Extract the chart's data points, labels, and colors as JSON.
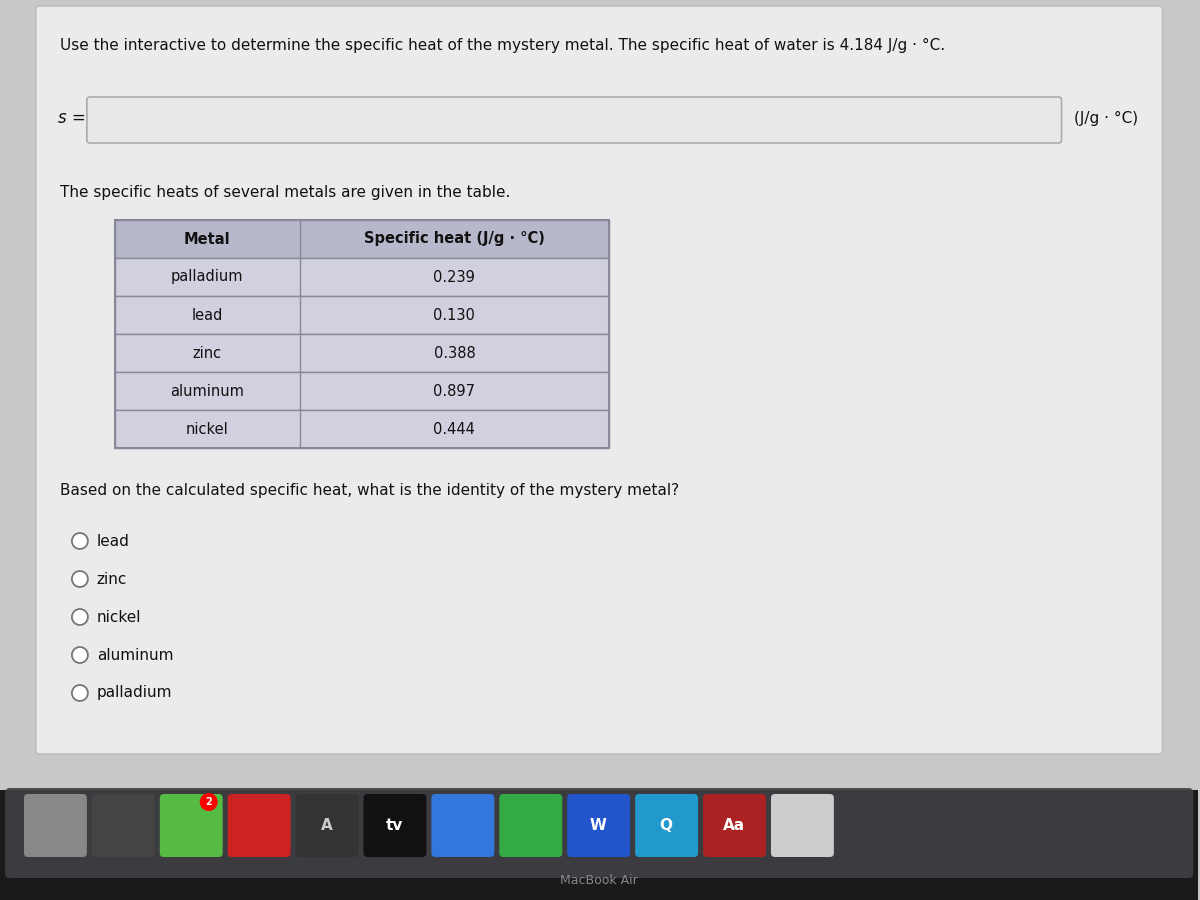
{
  "title": "Use the interactive to determine the specific heat of the mystery metal. The specific heat of water is 4.184 J/g · °C.",
  "s_label": "s =",
  "unit_label": "(J/g · °C)",
  "table_intro": "The specific heats of several metals are given in the table.",
  "table_headers": [
    "Metal",
    "Specific heat (J/g · °C)"
  ],
  "table_data": [
    [
      "palladium",
      "0.239"
    ],
    [
      "lead",
      "0.130"
    ],
    [
      "zinc",
      "0.388"
    ],
    [
      "aluminum",
      "0.897"
    ],
    [
      "nickel",
      "0.444"
    ]
  ],
  "question": "Based on the calculated specific heat, what is the identity of the mystery metal?",
  "options": [
    "lead",
    "zinc",
    "nickel",
    "aluminum",
    "palladium"
  ],
  "bg_color": "#c8c8c8",
  "panel_color": "#ebebeb",
  "table_header_bg": "#b8b8cc",
  "table_row_bg": "#d0d0de",
  "table_border": "#888899",
  "text_color": "#111111",
  "input_box_color": "#e8e8e8",
  "taskbar_bg": "#3a3a3c",
  "taskbar_dock_bg": "#5a5a5e",
  "macbook_text_color": "#888888"
}
